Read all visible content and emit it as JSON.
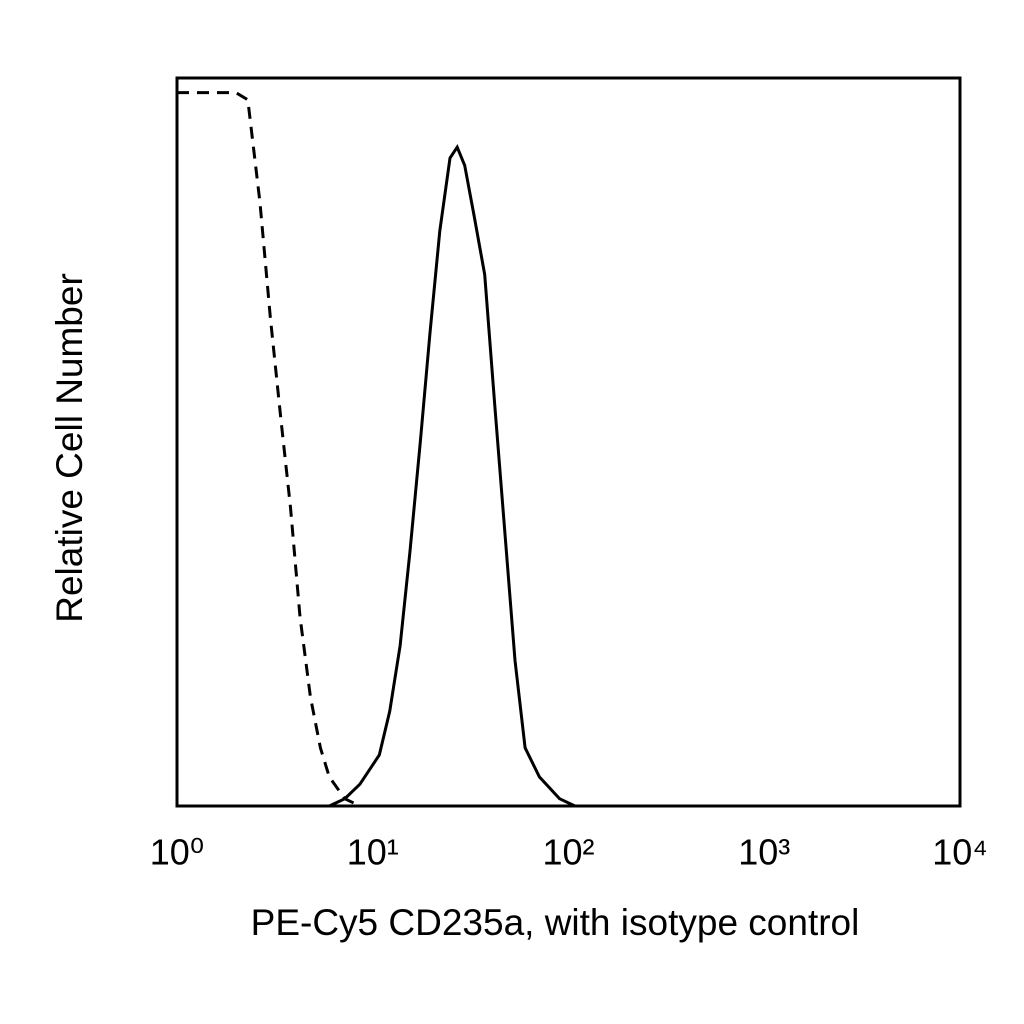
{
  "chart_data": {
    "type": "line",
    "xlabel": "PE-Cy5 CD235a, with isotype control",
    "ylabel": "Relative Cell Number",
    "xscale": "log",
    "xlim": [
      1,
      10000
    ],
    "xticks": [
      {
        "value": 1,
        "label": "10⁰"
      },
      {
        "value": 10,
        "label": "10¹"
      },
      {
        "value": 100,
        "label": "10²"
      },
      {
        "value": 1000,
        "label": "10³"
      },
      {
        "value": 10000,
        "label": "10⁴"
      }
    ],
    "ylim": [
      0,
      100
    ],
    "x": [
      1,
      1.5,
      2,
      2.3,
      2.65,
      3,
      3.4,
      3.8,
      4.25,
      4.8,
      5.4,
      6,
      7.2,
      8.6,
      10.8,
      12.2,
      13.8,
      15.5,
      17.5,
      19.6,
      22,
      24.8,
      27,
      29.5,
      33,
      37.3,
      42,
      47.5,
      53.3,
      60,
      71,
      90,
      108,
      180
    ],
    "series": [
      {
        "color": "#000000",
        "dashed": true,
        "values": [
          98,
          98,
          98,
          97,
          83,
          67,
          53,
          41,
          26,
          15,
          8,
          4,
          1,
          0,
          0,
          0,
          0,
          0,
          0,
          0,
          0,
          0,
          0,
          0,
          0,
          0,
          0,
          0,
          0,
          0,
          0,
          0,
          0,
          0
        ]
      },
      {
        "color": "#000000",
        "dashed": false,
        "values": [
          0,
          0,
          0,
          0,
          0,
          0,
          0,
          0,
          0,
          0,
          0,
          0,
          1,
          3,
          7,
          13,
          22,
          35,
          50,
          65,
          79,
          89,
          90.5,
          88,
          81,
          73,
          55,
          37,
          20,
          8,
          4,
          1,
          0,
          0
        ]
      }
    ]
  }
}
